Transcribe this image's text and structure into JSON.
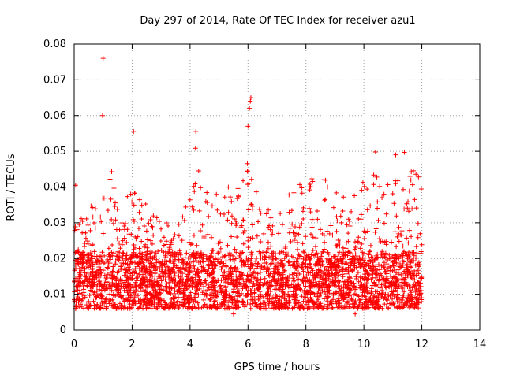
{
  "chart_data": {
    "type": "scatter",
    "title": "Day 297 of 2014, Rate Of TEC Index for receiver azu1",
    "xlabel": "GPS time / hours",
    "ylabel": "ROTI / TECUs",
    "xlim": [
      0,
      14
    ],
    "ylim": [
      0,
      0.08
    ],
    "xticks": [
      "0",
      "2",
      "4",
      "6",
      "8",
      "10",
      "12",
      "14"
    ],
    "yticks": [
      "0",
      "0.01",
      "0.02",
      "0.03",
      "0.04",
      "0.05",
      "0.06",
      "0.07",
      "0.08"
    ],
    "grid": true,
    "marker": "+",
    "color": "#ff0000",
    "series": [
      {
        "name": "ROTI",
        "notable_points": [
          {
            "x": 1.0,
            "y": 0.076
          },
          {
            "x": 0.98,
            "y": 0.06
          },
          {
            "x": 6.1,
            "y": 0.065
          },
          {
            "x": 6.08,
            "y": 0.064
          },
          {
            "x": 6.05,
            "y": 0.062
          },
          {
            "x": 6.0,
            "y": 0.057
          },
          {
            "x": 4.2,
            "y": 0.0555
          },
          {
            "x": 2.05,
            "y": 0.0555
          },
          {
            "x": 10.4,
            "y": 0.0498
          },
          {
            "x": 11.4,
            "y": 0.0497
          },
          {
            "x": 11.1,
            "y": 0.049
          },
          {
            "x": 0.05,
            "y": 0.0405
          },
          {
            "x": 5.5,
            "y": 0.0045
          },
          {
            "x": 9.7,
            "y": 0.0045
          }
        ],
        "envelope_hours": [
          0,
          0.5,
          1,
          1.3,
          1.7,
          2,
          2.5,
          3,
          3.5,
          4,
          4.2,
          4.5,
          5,
          5.5,
          5.8,
          6,
          6.2,
          6.5,
          7,
          7.5,
          8,
          8.5,
          9,
          9.5,
          10,
          10.5,
          11,
          11.5,
          12
        ],
        "envelope_upper": [
          0.03,
          0.034,
          0.04,
          0.045,
          0.035,
          0.047,
          0.036,
          0.03,
          0.032,
          0.038,
          0.052,
          0.04,
          0.044,
          0.038,
          0.048,
          0.058,
          0.046,
          0.034,
          0.034,
          0.04,
          0.042,
          0.044,
          0.041,
          0.04,
          0.042,
          0.046,
          0.043,
          0.046,
          0.043
        ],
        "baseline_mean": 0.013,
        "baseline_min": 0.006,
        "time_range": [
          0,
          12
        ]
      }
    ]
  }
}
